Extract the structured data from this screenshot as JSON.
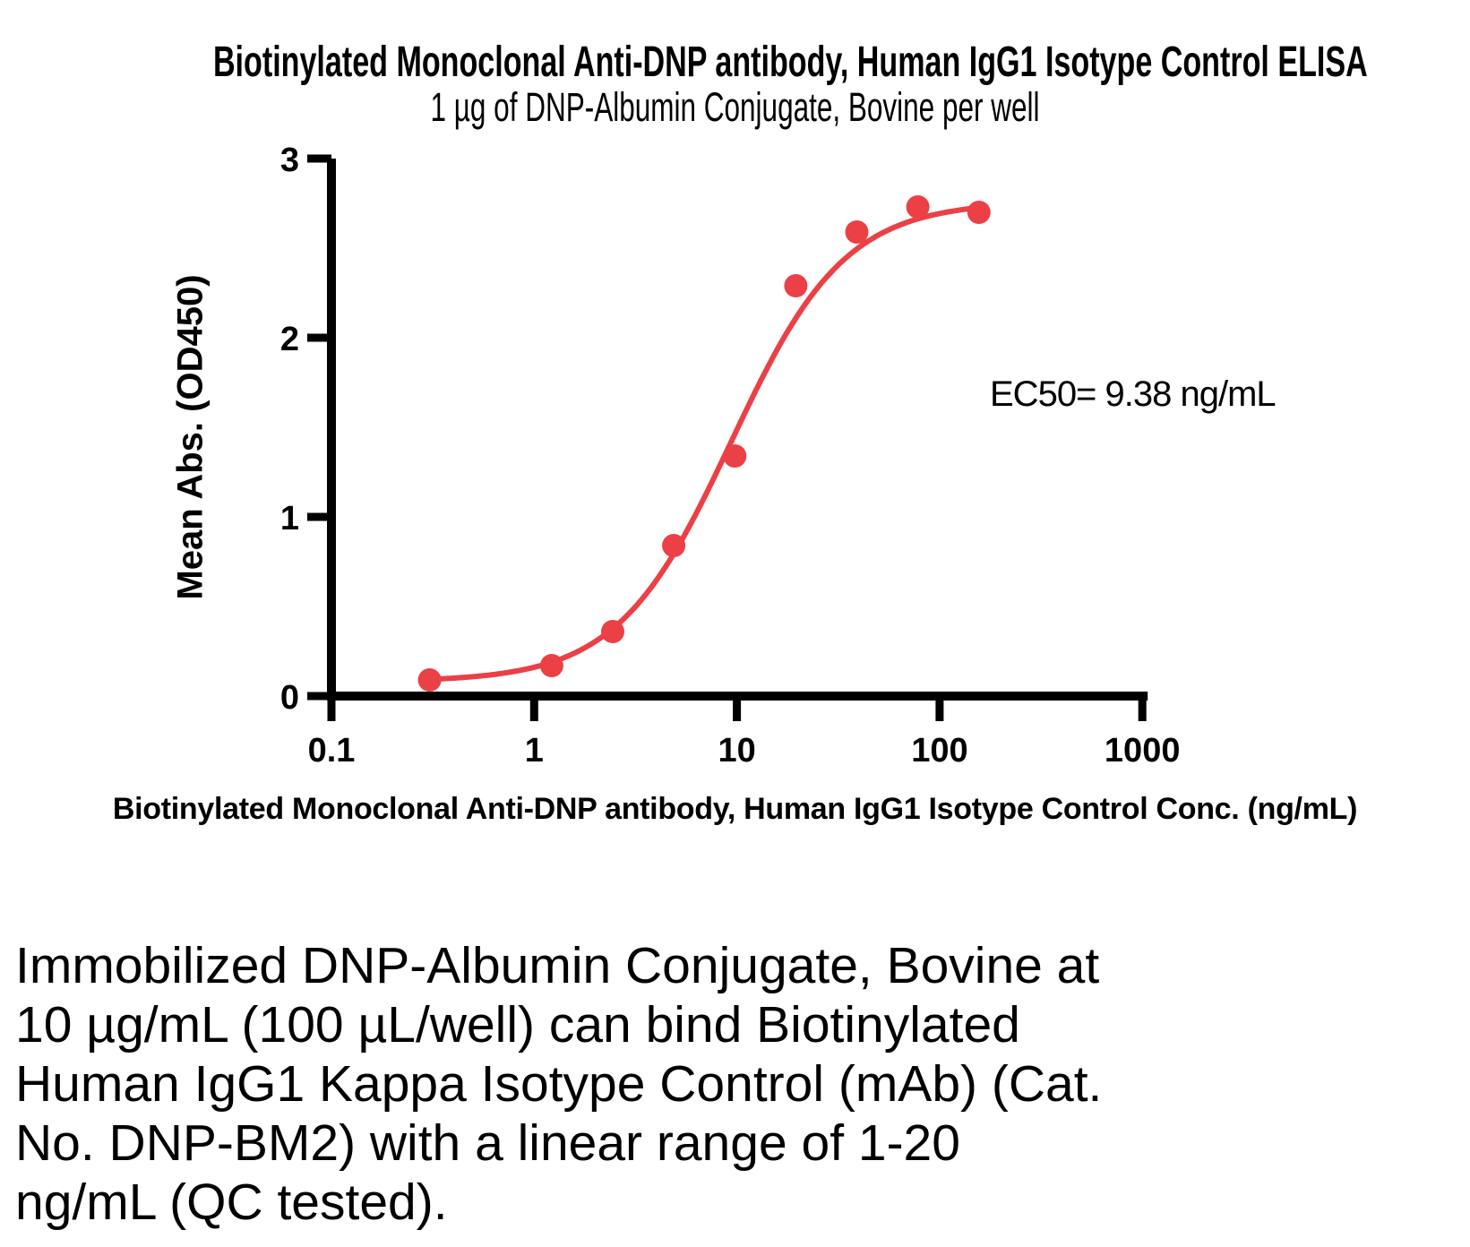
{
  "page": {
    "background_color": "#ffffff",
    "text_color": "#000000"
  },
  "chart_data": {
    "type": "scatter",
    "title": "Biotinylated Monoclonal Anti-DNP antibody, Human IgG1 Isotype Control ELISA",
    "subtitle": "1 µg of DNP-Albumin Conjugate, Bovine per well",
    "xlabel": "Biotinylated Monoclonal Anti-DNP antibody, Human IgG1 Isotype Control Conc. (ng/mL)",
    "ylabel": "Mean Abs. (OD450)",
    "x_scale": "log10",
    "xlim": [
      0.1,
      1000
    ],
    "ylim": [
      0,
      3
    ],
    "x_ticks": [
      0.1,
      1,
      10,
      100,
      1000
    ],
    "x_tick_labels": [
      "0.1",
      "1",
      "10",
      "100",
      "1000"
    ],
    "y_ticks": [
      0,
      1,
      2,
      3
    ],
    "y_tick_labels": [
      "0",
      "1",
      "2",
      "3"
    ],
    "grid": false,
    "legend": "none",
    "axis_color": "#000000",
    "series": [
      {
        "name": "Biotinylated Monoclonal Anti-DNP antibody, Human IgG1 Isotype Control",
        "color": "#EB4046",
        "marker": "circle",
        "x": [
          0.305,
          1.221,
          2.441,
          4.883,
          9.766,
          19.531,
          39.063,
          78.125,
          156.25
        ],
        "y": [
          0.09,
          0.17,
          0.36,
          0.84,
          1.34,
          2.29,
          2.59,
          2.73,
          2.7
        ]
      }
    ],
    "fit_curve": {
      "model": "4PL sigmoid",
      "bottom": 0.08,
      "top": 2.76,
      "ec50": 9.38,
      "hill": 1.55,
      "x_range": [
        0.305,
        145
      ]
    },
    "annotation": "EC50= 9.38 ng/mL"
  },
  "description": {
    "lines": [
      "Immobilized DNP-Albumin Conjugate, Bovine at",
      "10 µg/mL (100 µL/well) can bind Biotinylated",
      "Human IgG1 Kappa Isotype Control (mAb) (Cat.",
      "No. DNP-BM2) with a linear range of 1-20",
      "ng/mL (QC tested)."
    ]
  }
}
